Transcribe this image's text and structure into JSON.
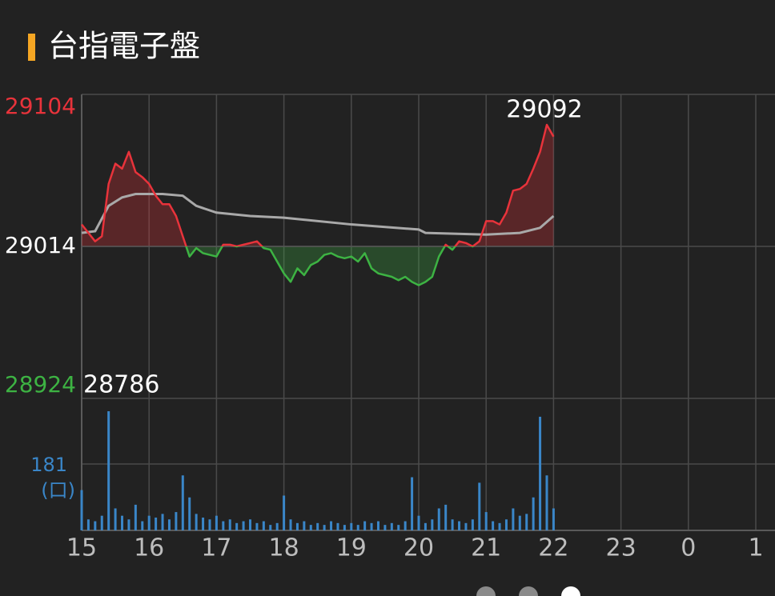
{
  "chart_data": {
    "type": "line",
    "title": "台指電子盤",
    "x": [
      15.0,
      15.1,
      15.2,
      15.3,
      15.4,
      15.5,
      15.6,
      15.7,
      15.8,
      15.9,
      16.0,
      16.1,
      16.2,
      16.3,
      16.4,
      16.5,
      16.6,
      16.7,
      16.8,
      16.9,
      17.0,
      17.1,
      17.2,
      17.3,
      17.4,
      17.5,
      17.6,
      17.7,
      17.8,
      17.9,
      18.0,
      18.1,
      18.2,
      18.3,
      18.4,
      18.5,
      18.6,
      18.7,
      18.8,
      18.9,
      19.0,
      19.1,
      19.2,
      19.3,
      19.4,
      19.5,
      19.6,
      19.7,
      19.8,
      19.9,
      20.0,
      20.1,
      20.2,
      20.3,
      20.4,
      20.5,
      20.6,
      20.7,
      20.8,
      20.9,
      21.0,
      21.1,
      21.2,
      21.3,
      21.4,
      21.5,
      21.6,
      21.7,
      21.8,
      21.9,
      22.0
    ],
    "series": [
      {
        "color": "#e8333b",
        "color_below": "#3db343",
        "values": [
          29027,
          29022,
          29017,
          29020,
          29051,
          29063,
          29060,
          29070,
          29058,
          29055,
          29051,
          29044,
          29039,
          29039,
          29032,
          29020,
          29008,
          29013,
          29010,
          29009,
          29008,
          29015,
          29015,
          29014,
          29015,
          29016,
          29017,
          29013,
          29012,
          29005,
          28998,
          28993,
          29001,
          28997,
          29003,
          29005,
          29009,
          29010,
          29008,
          29007,
          29008,
          29005,
          29010,
          29001,
          28998,
          28997,
          28996,
          28994,
          28996,
          28993,
          28991,
          28993,
          28996,
          29008,
          29015,
          29012,
          29017,
          29016,
          29014,
          29017,
          29029,
          29029,
          29027,
          29034,
          29047,
          29048,
          29051,
          29060,
          29070,
          29086,
          29079
        ]
      },
      {
        "color": "#a9a9a9",
        "x": [
          15.0,
          15.2,
          15.4,
          15.6,
          15.8,
          16.2,
          16.5,
          16.7,
          17.0,
          17.5,
          18.0,
          19.0,
          20.0,
          20.1,
          21.0,
          21.5,
          21.8,
          22.0
        ],
        "values": [
          29022,
          29023,
          29038,
          29043,
          29045,
          29045,
          29044,
          29038,
          29034,
          29032,
          29031,
          29027,
          29024,
          29022,
          29021,
          29022,
          29025,
          29032
        ]
      }
    ],
    "reference": 29014,
    "ylim": [
      28924,
      29104
    ],
    "yticks": [
      29104,
      29014,
      28924
    ],
    "ytick_colors": [
      "#e8333b",
      "#ffffff",
      "#3db343"
    ],
    "xlim": [
      15,
      25
    ],
    "xticks": [
      15,
      16,
      17,
      18,
      19,
      20,
      21,
      22,
      23,
      {
        "value": 24,
        "label": "0"
      },
      {
        "value": 25,
        "label": "1"
      }
    ],
    "annotations": [
      "29092",
      "28786"
    ],
    "volume": {
      "color": "#3a86c8",
      "unit": "(口)",
      "ylim": [
        0,
        360
      ],
      "yticks": [
        181
      ],
      "values": [
        110,
        30,
        25,
        40,
        325,
        60,
        40,
        30,
        70,
        25,
        40,
        35,
        45,
        30,
        50,
        150,
        90,
        45,
        35,
        30,
        40,
        25,
        30,
        20,
        25,
        30,
        20,
        25,
        15,
        20,
        95,
        30,
        20,
        25,
        15,
        20,
        15,
        25,
        20,
        15,
        20,
        15,
        25,
        20,
        25,
        15,
        20,
        15,
        25,
        145,
        40,
        20,
        30,
        60,
        70,
        30,
        25,
        20,
        30,
        130,
        50,
        25,
        20,
        30,
        60,
        40,
        45,
        90,
        310,
        150,
        60
      ]
    },
    "grid": true
  }
}
